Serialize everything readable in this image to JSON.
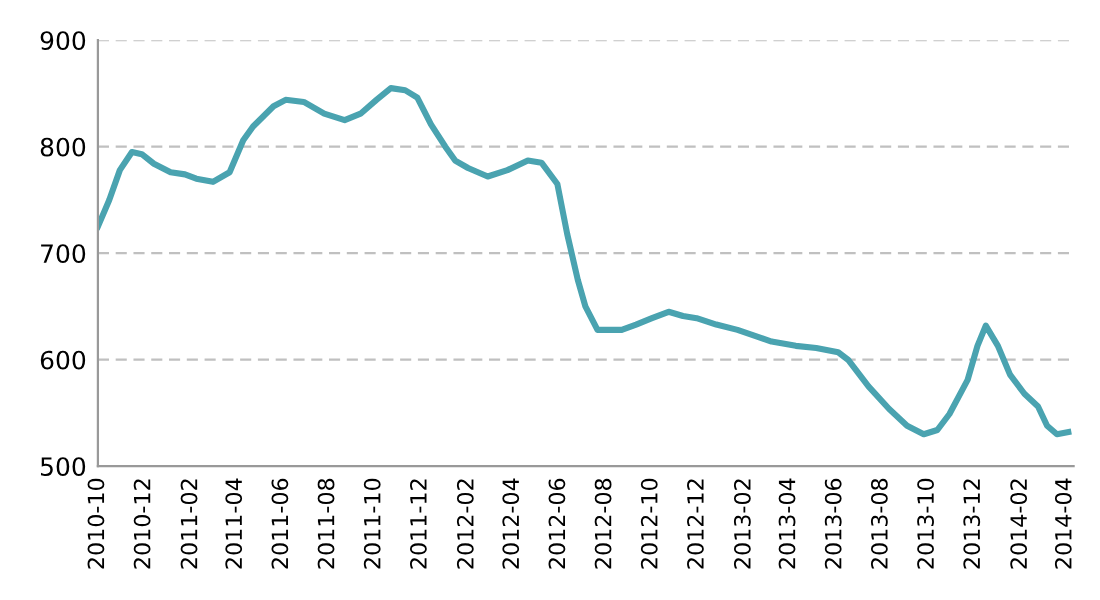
{
  "chart_data": {
    "type": "line",
    "x": [
      "2010-10-01",
      "2010-10-16",
      "2010-10-30",
      "2010-11-15",
      "2010-11-28",
      "2010-12-14",
      "2011-01-05",
      "2011-01-24",
      "2011-02-08",
      "2011-03-02",
      "2011-03-24",
      "2011-04-11",
      "2011-04-24",
      "2011-05-21",
      "2011-06-06",
      "2011-06-30",
      "2011-07-27",
      "2011-08-23",
      "2011-09-13",
      "2011-10-04",
      "2011-10-23",
      "2011-11-11",
      "2011-11-27",
      "2011-12-15",
      "2012-01-03",
      "2012-01-16",
      "2012-02-02",
      "2012-02-28",
      "2012-03-25",
      "2012-04-21",
      "2012-05-09",
      "2012-05-30",
      "2012-06-12",
      "2012-06-26",
      "2012-07-06",
      "2012-07-22",
      "2012-08-23",
      "2012-09-11",
      "2012-10-02",
      "2012-10-24",
      "2012-11-12",
      "2012-11-30",
      "2012-12-26",
      "2013-01-23",
      "2013-02-17",
      "2013-03-09",
      "2013-04-10",
      "2013-05-07",
      "2013-06-05",
      "2013-06-18",
      "2013-07-15",
      "2013-08-11",
      "2013-09-04",
      "2013-09-26",
      "2013-10-14",
      "2013-10-30",
      "2013-11-23",
      "2013-12-06",
      "2013-12-17",
      "2014-01-02",
      "2014-01-18",
      "2014-02-06",
      "2014-02-24",
      "2014-03-08",
      "2014-03-21",
      "2014-04-05"
    ],
    "series": [
      {
        "color": "#4aa3b0",
        "values": [
          725,
          750,
          778,
          795,
          793,
          784,
          776,
          774,
          770,
          767,
          776,
          806,
          819,
          838,
          844,
          842,
          831,
          825,
          831,
          844,
          855,
          853,
          846,
          821,
          800,
          787,
          780,
          772,
          778,
          787,
          785,
          765,
          718,
          675,
          650,
          628,
          628,
          633,
          639,
          645,
          641,
          639,
          633,
          628,
          622,
          617,
          613,
          611,
          607,
          600,
          575,
          554,
          538,
          530,
          534,
          549,
          581,
          613,
          632,
          613,
          586,
          568,
          556,
          538,
          530,
          532
        ]
      }
    ],
    "xlim": [
      "2010-10-01",
      "2014-04-12"
    ],
    "xticks": [
      "2010-10",
      "2010-12",
      "2011-02",
      "2011-04",
      "2011-06",
      "2011-08",
      "2011-10",
      "2011-12",
      "2012-02",
      "2012-04",
      "2012-06",
      "2012-08",
      "2012-10",
      "2012-12",
      "2013-02",
      "2013-04",
      "2013-06",
      "2013-08",
      "2013-10",
      "2013-12",
      "2014-02",
      "2014-04"
    ],
    "ylim": [
      500,
      900
    ],
    "yticks": [
      500,
      600,
      700,
      800,
      900
    ],
    "grid": "y",
    "marker": "none",
    "line_style": "solid",
    "legend": false
  }
}
